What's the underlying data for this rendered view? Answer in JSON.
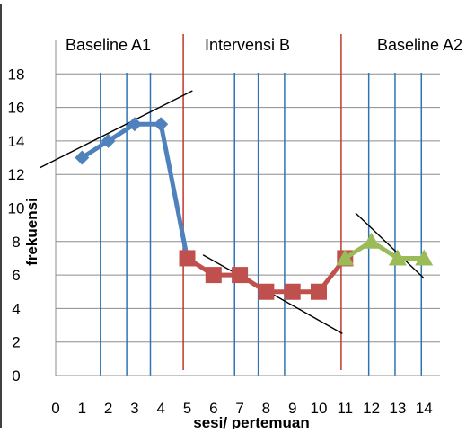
{
  "chart_data": {
    "type": "line",
    "xlabel": "sesi/ pertemuan",
    "ylabel": "frekuensi",
    "xlim": [
      0,
      14
    ],
    "ylim": [
      0,
      18
    ],
    "x_ticks": [
      "0",
      "1",
      "2",
      "3",
      "4",
      "5",
      "6",
      "7",
      "8",
      "9",
      "10",
      "11",
      "12",
      "13",
      "14"
    ],
    "y_ticks": [
      "0",
      "2",
      "4",
      "6",
      "8",
      "10",
      "12",
      "14",
      "16",
      "18"
    ],
    "grid": "horizontal gridlines plus vertical session separators",
    "phases": [
      {
        "label": "Baseline A1"
      },
      {
        "label": "Intervensi  B"
      },
      {
        "label": "Baseline A2"
      }
    ],
    "phase_change_lines_x": [
      4.85,
      10.85
    ],
    "session_lines_x": [
      1.7,
      2.7,
      3.6,
      6.8,
      7.7,
      8.7,
      11.9,
      12.9,
      13.9
    ],
    "series": [
      {
        "color": "#4f81bd",
        "marker": "diamond",
        "x": [
          1,
          2,
          3,
          4,
          5
        ],
        "y": [
          13,
          14,
          15,
          15,
          7
        ]
      },
      {
        "color": "#c0504d",
        "marker": "square",
        "x": [
          5,
          6,
          7,
          8,
          9,
          10,
          11
        ],
        "y": [
          7,
          6,
          6,
          5,
          5,
          5,
          7
        ]
      },
      {
        "color": "#9bbb59",
        "marker": "triangle",
        "x": [
          11,
          12,
          13,
          14
        ],
        "y": [
          7,
          8,
          7,
          7
        ]
      }
    ],
    "trend_lines": [
      {
        "x": [
          -0.6,
          5.2
        ],
        "y": [
          12.4,
          17.0
        ]
      },
      {
        "x": [
          5.6,
          10.9
        ],
        "y": [
          7.2,
          2.5
        ]
      },
      {
        "x": [
          11.4,
          14.0
        ],
        "y": [
          9.7,
          5.8
        ]
      }
    ]
  }
}
